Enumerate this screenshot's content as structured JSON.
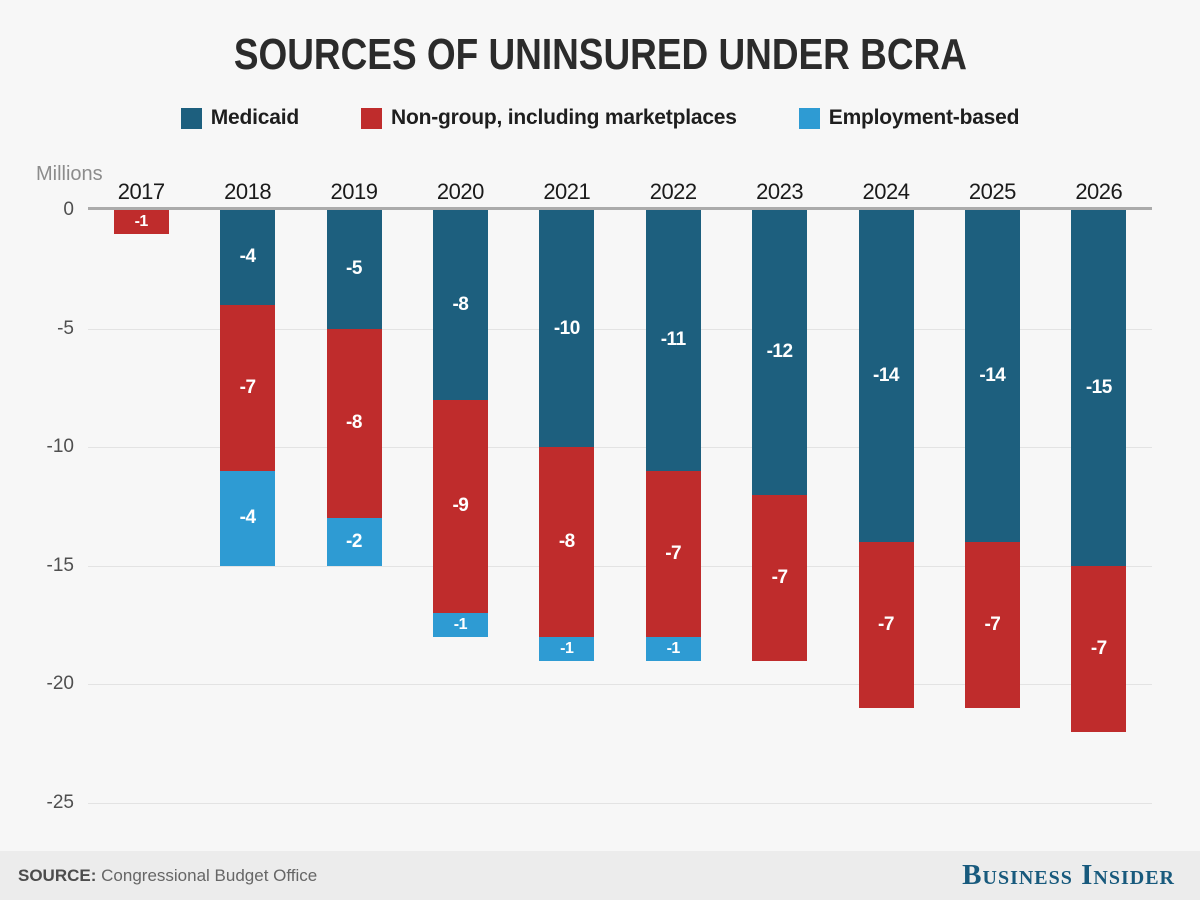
{
  "title": "SOURCES OF UNINSURED UNDER BCRA",
  "axis_unit_label": "Millions",
  "source": {
    "prefix": "SOURCE:",
    "text": "Congressional Budget Office"
  },
  "brand": "Business Insider",
  "colors": {
    "background": "#f7f7f7",
    "footer_background": "#ececec",
    "medicaid": "#1d5f7e",
    "nongroup": "#bf2c2c",
    "employment": "#2e9bd3",
    "zero_axis": "#ababab",
    "gridline": "#e3e3e3",
    "brand_blue": "#185a7d"
  },
  "chart_data": {
    "type": "bar",
    "stacked": true,
    "title": "SOURCES OF UNINSURED UNDER BCRA",
    "ylabel": "Millions",
    "legend_position": "top",
    "grid": true,
    "ylim": [
      0,
      -25
    ],
    "yticks": [
      0,
      -5,
      -10,
      -15,
      -20,
      -25
    ],
    "categories": [
      "2017",
      "2018",
      "2019",
      "2020",
      "2021",
      "2022",
      "2023",
      "2024",
      "2025",
      "2026"
    ],
    "series": [
      {
        "name": "Medicaid",
        "color": "#1d5f7e",
        "values": [
          0,
          -4,
          -5,
          -8,
          -10,
          -11,
          -12,
          -14,
          -14,
          -15
        ]
      },
      {
        "name": "Non-group, including marketplaces",
        "color": "#bf2c2c",
        "values": [
          -1,
          -7,
          -8,
          -9,
          -8,
          -7,
          -7,
          -7,
          -7,
          -7
        ]
      },
      {
        "name": "Employment-based",
        "color": "#2e9bd3",
        "values": [
          0,
          -4,
          -2,
          -1,
          -1,
          -1,
          0,
          0,
          0,
          0
        ]
      }
    ]
  }
}
